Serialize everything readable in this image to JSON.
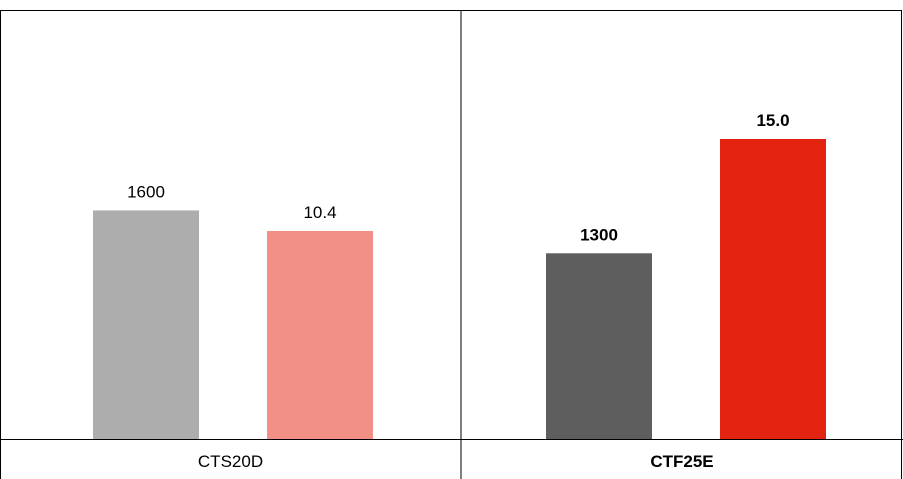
{
  "chart_data": {
    "type": "bar",
    "title": "",
    "xlabel": "",
    "ylabel": "",
    "grid": false,
    "legend": "none",
    "panels": [
      {
        "category": "CTS20D",
        "category_bold": false,
        "bars": [
          {
            "value": 1600,
            "label": "1600",
            "color": "#adadad",
            "bold": false
          },
          {
            "value": 10.4,
            "label": "10.4",
            "color": "#f28f87",
            "bold": false
          }
        ]
      },
      {
        "category": "CTF25E",
        "category_bold": true,
        "bars": [
          {
            "value": 1300,
            "label": "1300",
            "color": "#5e5e5e",
            "bold": true
          },
          {
            "value": 15.0,
            "label": "15.0",
            "color": "#e2230f",
            "bold": true
          }
        ]
      }
    ],
    "scales": [
      {
        "name": "",
        "series_index": 0,
        "max": 2800
      },
      {
        "name": "",
        "series_index": 1,
        "max": 20
      }
    ]
  }
}
